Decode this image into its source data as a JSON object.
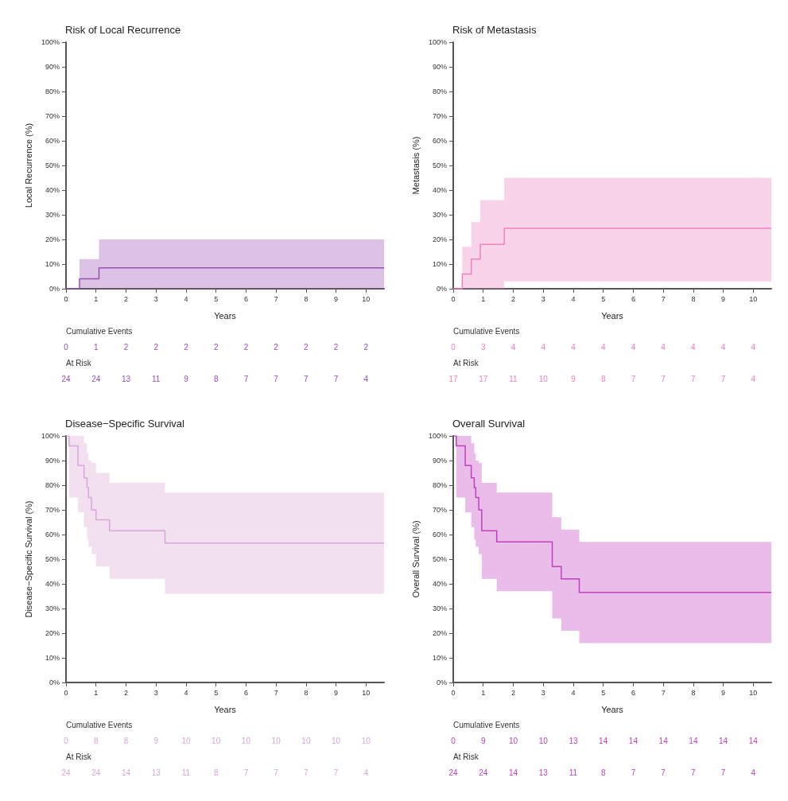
{
  "chart_data": [
    {
      "type": "step",
      "title": "Risk of Local Recurrence",
      "xlabel": "Years",
      "ylabel": "Local Recurrence (%)",
      "xlim": [
        0,
        10.6
      ],
      "xticks": [
        0,
        1,
        2,
        3,
        4,
        5,
        6,
        7,
        8,
        9,
        10
      ],
      "ylim": [
        0,
        100
      ],
      "yticks": [
        {
          "value": 0,
          "label": "0%"
        },
        {
          "value": 10,
          "label": "10%"
        },
        {
          "value": 20,
          "label": "20%"
        },
        {
          "value": 30,
          "label": "30%"
        },
        {
          "value": 40,
          "label": "40%"
        },
        {
          "value": 50,
          "label": "50%"
        },
        {
          "value": 60,
          "label": "60%"
        },
        {
          "value": 70,
          "label": "70%"
        },
        {
          "value": 80,
          "label": "80%"
        },
        {
          "value": 90,
          "label": "90%"
        },
        {
          "value": 100,
          "label": "100%"
        }
      ],
      "grid": false,
      "marker": "none",
      "x": [
        0,
        0.45,
        1.1,
        10.6
      ],
      "series": [
        {
          "color": "#9b4fb3",
          "values": [
            0,
            4,
            8.5,
            8.5
          ],
          "lower": [
            0,
            0,
            0,
            0
          ],
          "upper": [
            0,
            12,
            20,
            20
          ]
        }
      ],
      "annotations": [
        "Cumulative Events",
        "0",
        "1",
        "2",
        "2",
        "2",
        "2",
        "2",
        "2",
        "2",
        "2",
        "2",
        "At Risk",
        "24",
        "24",
        "13",
        "11",
        "9",
        "8",
        "7",
        "7",
        "7",
        "7",
        "4"
      ]
    },
    {
      "type": "step",
      "title": "Risk of Metastasis",
      "xlabel": "Years",
      "ylabel": "Metastasis (%)",
      "xlim": [
        0,
        10.6
      ],
      "xticks": [
        0,
        1,
        2,
        3,
        4,
        5,
        6,
        7,
        8,
        9,
        10
      ],
      "ylim": [
        0,
        100
      ],
      "yticks": [
        {
          "value": 0,
          "label": "0%"
        },
        {
          "value": 10,
          "label": "10%"
        },
        {
          "value": 20,
          "label": "20%"
        },
        {
          "value": 30,
          "label": "30%"
        },
        {
          "value": 40,
          "label": "40%"
        },
        {
          "value": 50,
          "label": "50%"
        },
        {
          "value": 60,
          "label": "60%"
        },
        {
          "value": 70,
          "label": "70%"
        },
        {
          "value": 80,
          "label": "80%"
        },
        {
          "value": 90,
          "label": "90%"
        },
        {
          "value": 100,
          "label": "100%"
        }
      ],
      "grid": false,
      "marker": "none",
      "x": [
        0,
        0.3,
        0.6,
        0.9,
        1.7,
        10.6
      ],
      "series": [
        {
          "color": "#ee82c0",
          "values": [
            0,
            6,
            12,
            18,
            24.5,
            24.5
          ],
          "lower": [
            0,
            0,
            0,
            0,
            3,
            3
          ],
          "upper": [
            0,
            17,
            27,
            36,
            45,
            45
          ]
        }
      ],
      "annotations": [
        "Cumulative Events",
        "0",
        "3",
        "4",
        "4",
        "4",
        "4",
        "4",
        "4",
        "4",
        "4",
        "4",
        "At Risk",
        "17",
        "17",
        "11",
        "10",
        "9",
        "8",
        "7",
        "7",
        "7",
        "7",
        "4"
      ]
    },
    {
      "type": "step",
      "title": "Disease−Specific Survival",
      "xlabel": "Years",
      "ylabel": "Disease−Specific Survival (%)",
      "xlim": [
        0,
        10.6
      ],
      "xticks": [
        0,
        1,
        2,
        3,
        4,
        5,
        6,
        7,
        8,
        9,
        10
      ],
      "ylim": [
        0,
        100
      ],
      "yticks": [
        {
          "value": 0,
          "label": "0%"
        },
        {
          "value": 10,
          "label": "10%"
        },
        {
          "value": 20,
          "label": "20%"
        },
        {
          "value": 30,
          "label": "30%"
        },
        {
          "value": 40,
          "label": "40%"
        },
        {
          "value": 50,
          "label": "50%"
        },
        {
          "value": 60,
          "label": "60%"
        },
        {
          "value": 70,
          "label": "70%"
        },
        {
          "value": 80,
          "label": "80%"
        },
        {
          "value": 90,
          "label": "90%"
        },
        {
          "value": 100,
          "label": "100%"
        }
      ],
      "grid": false,
      "marker": "none",
      "x": [
        0,
        0.1,
        0.4,
        0.6,
        0.7,
        0.75,
        0.85,
        1.0,
        1.45,
        3.3,
        10.6
      ],
      "series": [
        {
          "color": "#d9a6d8",
          "values": [
            100,
            96,
            88,
            83,
            79,
            75,
            70,
            66,
            61.5,
            56.5,
            56.5
          ],
          "lower": [
            100,
            75,
            69,
            63,
            58,
            55,
            52,
            47,
            42,
            36,
            36
          ],
          "upper": [
            100,
            100,
            100,
            97,
            93,
            90,
            89,
            85,
            81,
            77,
            77
          ]
        }
      ],
      "annotations": [
        "Cumulative Events",
        "0",
        "8",
        "8",
        "9",
        "10",
        "10",
        "10",
        "10",
        "10",
        "10",
        "10",
        "At Risk",
        "24",
        "24",
        "14",
        "13",
        "11",
        "8",
        "7",
        "7",
        "7",
        "7",
        "4"
      ]
    },
    {
      "type": "step",
      "title": "Overall Survival",
      "xlabel": "Years",
      "ylabel": "Overall Survival (%)",
      "xlim": [
        0,
        10.6
      ],
      "xticks": [
        0,
        1,
        2,
        3,
        4,
        5,
        6,
        7,
        8,
        9,
        10
      ],
      "ylim": [
        0,
        100
      ],
      "yticks": [
        {
          "value": 0,
          "label": "0%"
        },
        {
          "value": 10,
          "label": "10%"
        },
        {
          "value": 20,
          "label": "20%"
        },
        {
          "value": 30,
          "label": "30%"
        },
        {
          "value": 40,
          "label": "40%"
        },
        {
          "value": 50,
          "label": "50%"
        },
        {
          "value": 60,
          "label": "60%"
        },
        {
          "value": 70,
          "label": "70%"
        },
        {
          "value": 80,
          "label": "80%"
        },
        {
          "value": 90,
          "label": "90%"
        },
        {
          "value": 100,
          "label": "100%"
        }
      ],
      "grid": false,
      "marker": "none",
      "x": [
        0,
        0.1,
        0.4,
        0.6,
        0.7,
        0.75,
        0.85,
        0.95,
        1.45,
        3.3,
        3.6,
        4.2,
        10.6
      ],
      "series": [
        {
          "color": "#c040c0",
          "values": [
            100,
            96,
            88,
            83,
            79,
            75,
            70,
            61.5,
            57,
            47,
            42,
            36.5,
            36.5
          ],
          "lower": [
            100,
            75,
            69,
            63,
            58,
            55,
            52,
            42,
            37,
            26,
            21,
            16,
            16
          ],
          "upper": [
            100,
            100,
            100,
            97,
            93,
            90,
            89,
            81,
            77,
            67,
            62,
            57,
            57
          ]
        }
      ],
      "annotations": [
        "Cumulative Events",
        "0",
        "9",
        "10",
        "10",
        "13",
        "14",
        "14",
        "14",
        "14",
        "14",
        "14",
        "At Risk",
        "24",
        "24",
        "14",
        "13",
        "11",
        "8",
        "7",
        "7",
        "7",
        "7",
        "4"
      ]
    }
  ]
}
